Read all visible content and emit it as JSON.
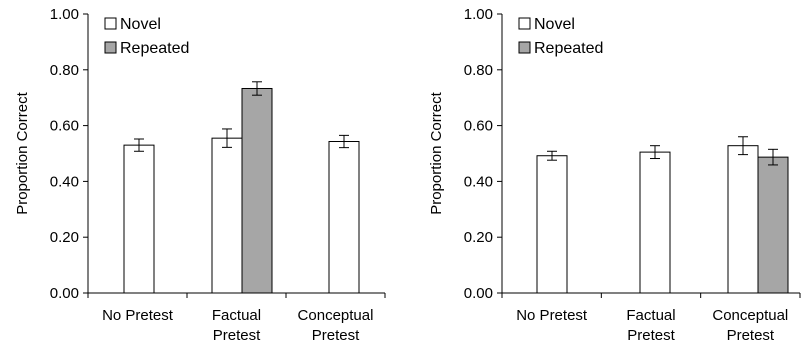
{
  "colors": {
    "novel": "#ffffff",
    "repeated": "#a6a6a6",
    "stroke": "#000000"
  },
  "chart_data": [
    {
      "type": "bar",
      "title": "",
      "xlabel": "",
      "ylabel": "Proportion Correct",
      "ylim": [
        0,
        1
      ],
      "yticks": [
        "0.00",
        "0.20",
        "0.40",
        "0.60",
        "0.80",
        "1.00"
      ],
      "categories": [
        [
          "No Pretest"
        ],
        [
          "Factual",
          "Pretest"
        ],
        [
          "Conceptual",
          "Pretest"
        ]
      ],
      "legend_position": "top-left",
      "series": [
        {
          "name": "Novel",
          "values": [
            0.53,
            0.555,
            0.543
          ],
          "errors": [
            0.022,
            0.033,
            0.022
          ]
        },
        {
          "name": "Repeated",
          "values": [
            null,
            0.733,
            null
          ],
          "errors": [
            null,
            0.024,
            null
          ]
        }
      ]
    },
    {
      "type": "bar",
      "title": "",
      "xlabel": "",
      "ylabel": "Proportion Correct",
      "ylim": [
        0,
        1
      ],
      "yticks": [
        "0.00",
        "0.20",
        "0.40",
        "0.60",
        "0.80",
        "1.00"
      ],
      "categories": [
        [
          "No Pretest"
        ],
        [
          "Factual",
          "Pretest"
        ],
        [
          "Conceptual",
          "Pretest"
        ]
      ],
      "legend_position": "top-left",
      "series": [
        {
          "name": "Novel",
          "values": [
            0.492,
            0.505,
            0.528
          ],
          "errors": [
            0.016,
            0.023,
            0.032
          ]
        },
        {
          "name": "Repeated",
          "values": [
            null,
            null,
            0.487
          ],
          "errors": [
            null,
            null,
            0.028
          ]
        }
      ]
    }
  ]
}
